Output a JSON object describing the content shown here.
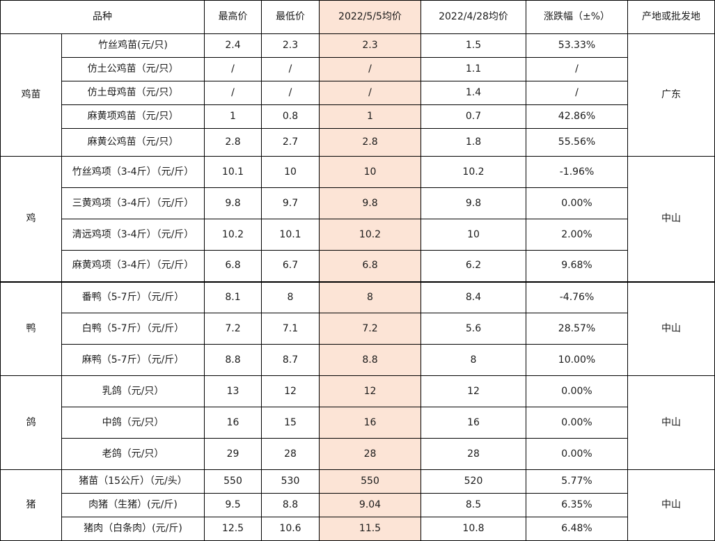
{
  "headers": {
    "variety": "品种",
    "max_price": "最高价",
    "min_price": "最低价",
    "avg_current": "2022/5/5均价",
    "avg_prev": "2022/4/28均价",
    "change": "涨跌幅（±%）",
    "origin": "产地或批发地"
  },
  "highlight_color": "#fce4d6",
  "groups": [
    {
      "category": "鸡苗",
      "origin": "广东",
      "rows": [
        {
          "name": "竹丝鸡苗(元/只)",
          "max": "2.4",
          "min": "2.3",
          "avg": "2.3",
          "prev": "1.5",
          "change": "53.33%"
        },
        {
          "name": "仿土公鸡苗（元/只）",
          "max": "/",
          "min": "/",
          "avg": "/",
          "prev": "1.1",
          "change": "/"
        },
        {
          "name": "仿土母鸡苗（元/只）",
          "max": "/",
          "min": "/",
          "avg": "/",
          "prev": "1.4",
          "change": "/"
        },
        {
          "name": "麻黄项鸡苗（元/只）",
          "max": "1",
          "min": "0.8",
          "avg": "1",
          "prev": "0.7",
          "change": "42.86%"
        },
        {
          "name": "麻黄公鸡苗（元/只）",
          "max": "2.8",
          "min": "2.7",
          "avg": "2.8",
          "prev": "1.8",
          "change": "55.56%"
        }
      ]
    },
    {
      "category": "鸡",
      "origin": "中山",
      "rows": [
        {
          "name": "竹丝鸡项（3-4斤）（元/斤）",
          "max": "10.1",
          "min": "10",
          "avg": "10",
          "prev": "10.2",
          "change": "-1.96%"
        },
        {
          "name": "三黄鸡项（3-4斤）（元/斤）",
          "max": "9.8",
          "min": "9.7",
          "avg": "9.8",
          "prev": "9.8",
          "change": "0.00%"
        },
        {
          "name": "清远鸡项（3-4斤）（元/斤）",
          "max": "10.2",
          "min": "10.1",
          "avg": "10.2",
          "prev": "10",
          "change": "2.00%"
        },
        {
          "name": "麻黄鸡项（3-4斤）（元/斤）",
          "max": "6.8",
          "min": "6.7",
          "avg": "6.8",
          "prev": "6.2",
          "change": "9.68%"
        }
      ]
    },
    {
      "category": "鸭",
      "origin": "中山",
      "rows": [
        {
          "name": "番鸭（5-7斤）（元/斤）",
          "max": "8.1",
          "min": "8",
          "avg": "8",
          "prev": "8.4",
          "change": "-4.76%"
        },
        {
          "name": "白鸭（5-7斤）（元/斤）",
          "max": "7.2",
          "min": "7.1",
          "avg": "7.2",
          "prev": "5.6",
          "change": "28.57%"
        },
        {
          "name": "麻鸭（5-7斤）（元/斤）",
          "max": "8.8",
          "min": "8.7",
          "avg": "8.8",
          "prev": "8",
          "change": "10.00%"
        }
      ]
    },
    {
      "category": "鸽",
      "origin": "中山",
      "rows": [
        {
          "name": "乳鸽（元/只）",
          "max": "13",
          "min": "12",
          "avg": "12",
          "prev": "12",
          "change": "0.00%"
        },
        {
          "name": "中鸽（元/只）",
          "max": "16",
          "min": "15",
          "avg": "16",
          "prev": "16",
          "change": "0.00%"
        },
        {
          "name": "老鸽（元/只）",
          "max": "29",
          "min": "28",
          "avg": "28",
          "prev": "28",
          "change": "0.00%"
        }
      ]
    },
    {
      "category": "猪",
      "origin": "中山",
      "rows": [
        {
          "name": "猪苗（15公斤）（元/头）",
          "max": "550",
          "min": "530",
          "avg": "550",
          "prev": "520",
          "change": "5.77%"
        },
        {
          "name": "肉猪（生猪）(元/斤)",
          "max": "9.5",
          "min": "8.8",
          "avg": "9.04",
          "prev": "8.5",
          "change": "6.35%"
        },
        {
          "name": "猪肉（白条肉）(元/斤)",
          "max": "12.5",
          "min": "10.6",
          "avg": "11.5",
          "prev": "10.8",
          "change": "6.48%"
        }
      ]
    }
  ]
}
